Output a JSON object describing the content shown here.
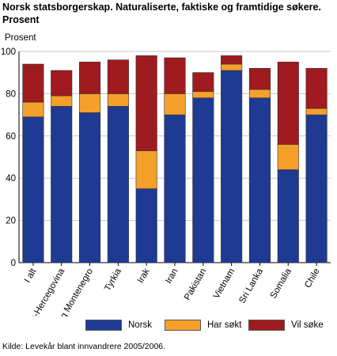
{
  "title_line1": "Norsk statsborgerskap. Naturaliserte, faktiske og framtidige søkere.",
  "title_line2": "Prosent",
  "source": "Kilde: Levekår blant innvandrere 2005/2006.",
  "chart_data": {
    "type": "bar",
    "stacked": true,
    "title": "Norsk statsborgerskap. Naturaliserte, faktiske og framtidige søkere. Prosent",
    "ylabel": "Prosent",
    "xlabel": "",
    "ylim": [
      0,
      100
    ],
    "yticks": [
      0,
      20,
      40,
      60,
      80,
      100
    ],
    "grid": true,
    "legend_position": "bottom",
    "categories": [
      "I alt",
      "Bosnia-Hercegovina",
      "Serbia og Montenegro",
      "Tyrkia",
      "Irak",
      "Iran",
      "Pakistan",
      "Vietnam",
      "Sri Lanka",
      "Somalia",
      "Chile"
    ],
    "series": [
      {
        "name": "Norsk",
        "color": "#1f3a93",
        "values": [
          69,
          74,
          71,
          74,
          35,
          70,
          78,
          91,
          78,
          44,
          70
        ]
      },
      {
        "name": "Har søkt",
        "color": "#f5a02a",
        "values": [
          7,
          5,
          9,
          6,
          18,
          10,
          3,
          3,
          4,
          12,
          3
        ]
      },
      {
        "name": "Vil søke",
        "color": "#a01b1f",
        "values": [
          18,
          12,
          15,
          16,
          45,
          17,
          9,
          4,
          10,
          39,
          19
        ]
      }
    ]
  }
}
